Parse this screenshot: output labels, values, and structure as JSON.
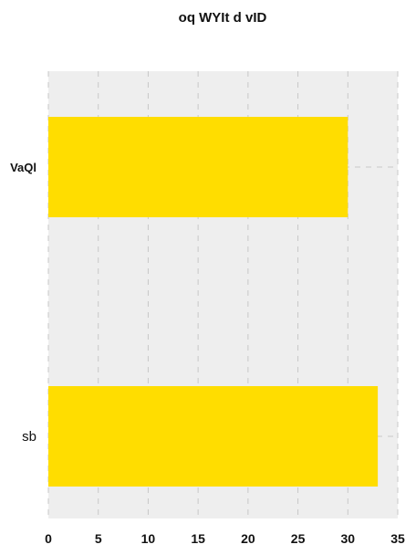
{
  "chart_data": {
    "type": "bar",
    "orientation": "horizontal",
    "title": "oq WYIt d vID",
    "categories": [
      "VaQl",
      "sb"
    ],
    "category_label_weights": [
      "bold",
      "normal"
    ],
    "values": [
      30,
      33
    ],
    "xlim": [
      0,
      35
    ],
    "x_ticks": [
      0,
      5,
      10,
      15,
      20,
      25,
      30,
      35
    ],
    "xlabel": "",
    "ylabel": "",
    "grid": true,
    "bar_color": "#FFDD00",
    "plot_background": "#EEEEEE",
    "grid_color": "#C8C8C8"
  }
}
